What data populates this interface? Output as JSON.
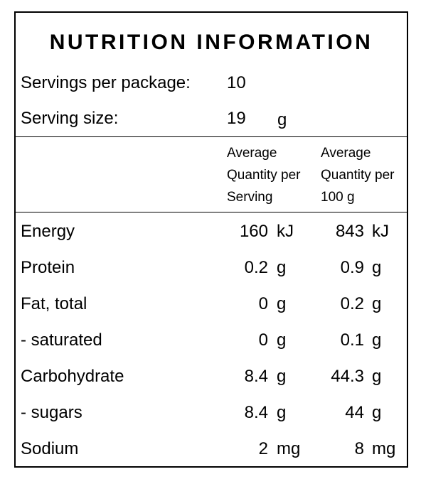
{
  "title": "NUTRITION INFORMATION",
  "servings": {
    "label": "Servings per package:",
    "value": "10"
  },
  "serving_size": {
    "label": "Serving size:",
    "value": "19",
    "unit": "g"
  },
  "headers": {
    "per_serving": "Average\nQuantity per\nServing",
    "per_100g": "Average\nQuantity per\n100 g"
  },
  "rows": [
    {
      "name": "Energy",
      "serving": "160",
      "serving_unit": "kJ",
      "per100": "843",
      "per100_unit": "kJ"
    },
    {
      "name": "Protein",
      "serving": "0.2",
      "serving_unit": "g",
      "per100": "0.9",
      "per100_unit": "g"
    },
    {
      "name": "Fat, total",
      "serving": "0",
      "serving_unit": "g",
      "per100": "0.2",
      "per100_unit": "g"
    },
    {
      "name": "- saturated",
      "serving": "0",
      "serving_unit": "g",
      "per100": "0.1",
      "per100_unit": "g"
    },
    {
      "name": "Carbohydrate",
      "serving": "8.4",
      "serving_unit": "g",
      "per100": "44.3",
      "per100_unit": "g"
    },
    {
      "name": "- sugars",
      "serving": "8.4",
      "serving_unit": "g",
      "per100": "44",
      "per100_unit": "g"
    },
    {
      "name": "Sodium",
      "serving": "2",
      "serving_unit": "mg",
      "per100": "8",
      "per100_unit": "mg"
    }
  ]
}
